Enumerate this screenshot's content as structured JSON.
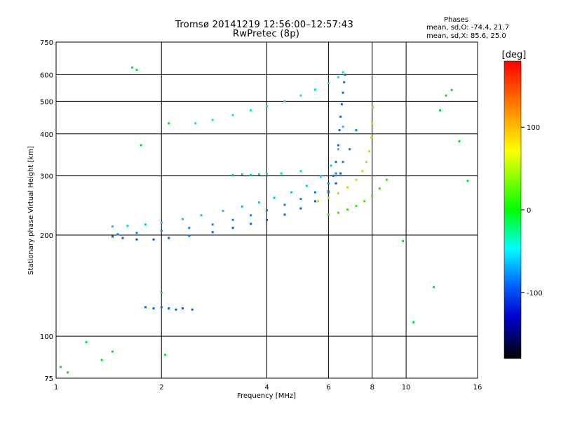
{
  "header": {
    "title_line1": "Tromsø 20141219 12:56:00–12:57:43",
    "title_line2": "RwPretec (8p)"
  },
  "stats": {
    "heading": "Phases",
    "o_mode": "mean, sd,O: -74.4, 21.7",
    "x_mode": "mean, sd,X:  85.6, 25.0"
  },
  "chart_data": {
    "type": "scatter",
    "title": "Tromsø 20141219 12:56:00–12:57:43",
    "subtitle": "RwPretec (8p)",
    "xlabel": "Frequency [MHz]",
    "ylabel": "Stationary phase Virtual Height [km]",
    "x_scale": "log",
    "y_scale": "log",
    "xlim": [
      1,
      16
    ],
    "ylim": [
      75,
      750
    ],
    "x_ticks": [
      1,
      2,
      4,
      6,
      8,
      10,
      16
    ],
    "x_tick_labels": [
      "1",
      "2",
      "4",
      "6",
      "8",
      "10",
      "16"
    ],
    "y_ticks": [
      75,
      100,
      200,
      300,
      400,
      500,
      600,
      750
    ],
    "y_tick_labels": [
      "75",
      "100",
      "200",
      "300",
      "400",
      "500",
      "600",
      "750"
    ],
    "grid": true,
    "colorbar": {
      "label": "[deg]",
      "range": [
        -180,
        180
      ],
      "ticks": [
        100,
        0,
        -100
      ],
      "tick_labels": [
        "100",
        "0",
        "-100"
      ]
    },
    "series": [
      {
        "trace": "o-mode lower trace",
        "phase_deg": -110,
        "points": [
          [
            1.45,
            198
          ],
          [
            1.55,
            196
          ],
          [
            1.7,
            194
          ],
          [
            1.9,
            194
          ],
          [
            2.1,
            196
          ],
          [
            2.4,
            199
          ],
          [
            2.8,
            204
          ],
          [
            3.2,
            210
          ],
          [
            3.6,
            216
          ],
          [
            4.0,
            222
          ],
          [
            4.5,
            230
          ],
          [
            5.0,
            240
          ],
          [
            5.5,
            252
          ],
          [
            6.0,
            268
          ],
          [
            6.3,
            285
          ],
          [
            6.5,
            305
          ]
        ]
      },
      {
        "trace": "o-mode middle trace",
        "phase_deg": -95,
        "points": [
          [
            1.5,
            201
          ],
          [
            1.7,
            203
          ],
          [
            2.0,
            206
          ],
          [
            2.4,
            210
          ],
          [
            2.8,
            215
          ],
          [
            3.2,
            222
          ],
          [
            3.6,
            229
          ],
          [
            4.0,
            237
          ],
          [
            4.5,
            246
          ],
          [
            5.0,
            256
          ],
          [
            5.5,
            268
          ],
          [
            6.0,
            285
          ],
          [
            6.3,
            305
          ],
          [
            6.6,
            330
          ],
          [
            6.9,
            360
          ],
          [
            7.2,
            410
          ]
        ]
      },
      {
        "trace": "o-mode upper trace",
        "phase_deg": -70,
        "points": [
          [
            1.45,
            212
          ],
          [
            1.6,
            213
          ],
          [
            1.8,
            215
          ],
          [
            2.0,
            218
          ],
          [
            2.3,
            223
          ],
          [
            2.6,
            229
          ],
          [
            3.0,
            236
          ],
          [
            3.4,
            243
          ],
          [
            3.8,
            250
          ],
          [
            4.2,
            258
          ],
          [
            4.7,
            268
          ],
          [
            5.2,
            280
          ],
          [
            5.7,
            298
          ],
          [
            6.1,
            322
          ],
          [
            6.4,
            360
          ],
          [
            6.6,
            420
          ]
        ]
      },
      {
        "trace": "o-mode cusp",
        "phase_deg": -105,
        "points": [
          [
            6.0,
            270
          ],
          [
            6.2,
            300
          ],
          [
            6.3,
            330
          ],
          [
            6.4,
            370
          ],
          [
            6.45,
            410
          ],
          [
            6.5,
            450
          ],
          [
            6.55,
            490
          ],
          [
            6.6,
            530
          ],
          [
            6.65,
            570
          ],
          [
            6.7,
            600
          ]
        ]
      },
      {
        "trace": "high echo trace",
        "phase_deg": -60,
        "points": [
          [
            2.5,
            430
          ],
          [
            2.8,
            440
          ],
          [
            3.2,
            455
          ],
          [
            3.6,
            470
          ],
          [
            4.0,
            483
          ],
          [
            4.5,
            500
          ],
          [
            5.0,
            520
          ],
          [
            5.5,
            542
          ],
          [
            6.0,
            565
          ],
          [
            6.4,
            590
          ],
          [
            6.6,
            610
          ]
        ]
      },
      {
        "trace": "x-mode trace",
        "phase_deg": 85,
        "points": [
          [
            5.6,
            252
          ],
          [
            6.0,
            258
          ],
          [
            6.4,
            266
          ],
          [
            6.8,
            277
          ],
          [
            7.2,
            292
          ],
          [
            7.5,
            310
          ],
          [
            7.7,
            330
          ],
          [
            7.85,
            355
          ],
          [
            7.95,
            390
          ],
          [
            8.0,
            430
          ],
          [
            8.05,
            480
          ]
        ]
      },
      {
        "trace": "x-mode lower branch",
        "phase_deg": 40,
        "points": [
          [
            6.0,
            230
          ],
          [
            6.4,
            233
          ],
          [
            6.8,
            238
          ],
          [
            7.2,
            244
          ],
          [
            7.6,
            252
          ],
          [
            8.0,
            262
          ],
          [
            8.4,
            275
          ],
          [
            8.8,
            292
          ]
        ]
      },
      {
        "trace": "E-layer echo",
        "phase_deg": -110,
        "points": [
          [
            1.8,
            122
          ],
          [
            1.9,
            121
          ],
          [
            2.0,
            122
          ],
          [
            2.1,
            121
          ],
          [
            2.2,
            120
          ],
          [
            2.3,
            121
          ],
          [
            2.45,
            120
          ]
        ]
      },
      {
        "trace": "E-region points",
        "phase_deg": -40,
        "points": [
          [
            3.2,
            302
          ],
          [
            3.4,
            303
          ],
          [
            3.6,
            302
          ],
          [
            3.8,
            303
          ],
          [
            4.0,
            304
          ],
          [
            4.4,
            305
          ],
          [
            5.0,
            310
          ]
        ]
      },
      {
        "trace": "scattered points",
        "phase_deg": 0,
        "points": [
          [
            1.03,
            81
          ],
          [
            1.08,
            78
          ],
          [
            1.22,
            96
          ],
          [
            1.35,
            85
          ],
          [
            1.45,
            90
          ],
          [
            1.65,
            630
          ],
          [
            1.7,
            620
          ],
          [
            1.75,
            370
          ],
          [
            2.05,
            88
          ],
          [
            2.1,
            430
          ],
          [
            2.0,
            135
          ],
          [
            9.8,
            192
          ],
          [
            10.5,
            110
          ],
          [
            12.0,
            140
          ],
          [
            12.5,
            470
          ],
          [
            13.5,
            540
          ],
          [
            14.2,
            380
          ],
          [
            15.0,
            290
          ],
          [
            13.0,
            520
          ]
        ]
      }
    ]
  }
}
